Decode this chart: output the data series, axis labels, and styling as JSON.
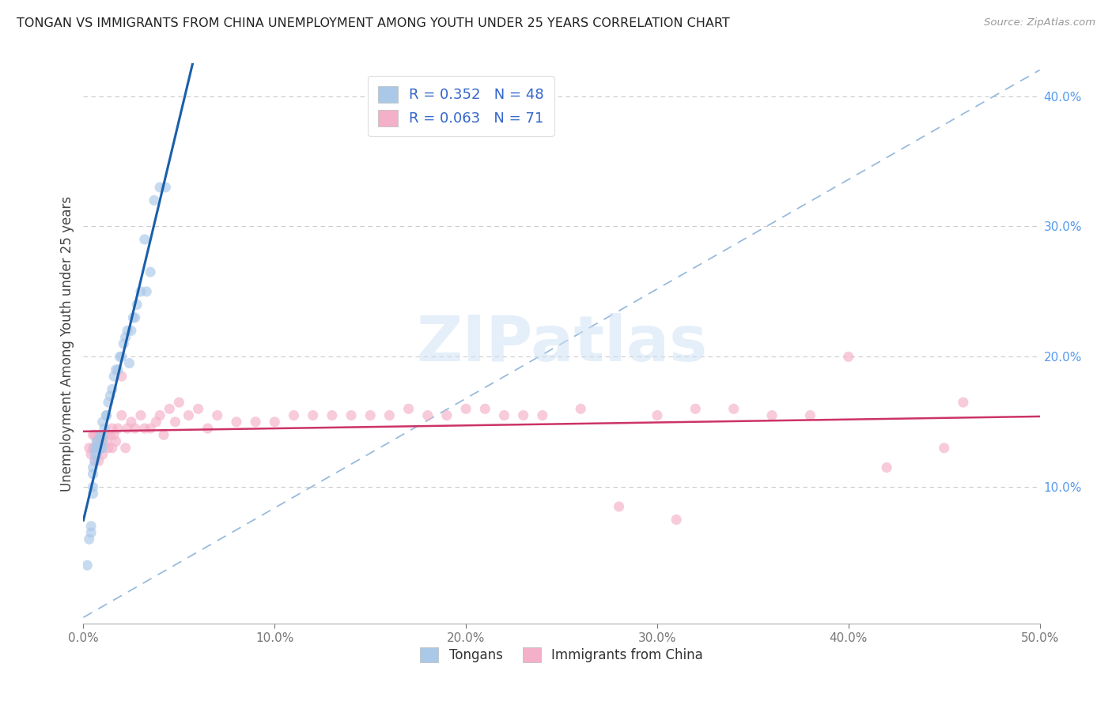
{
  "title": "TONGAN VS IMMIGRANTS FROM CHINA UNEMPLOYMENT AMONG YOUTH UNDER 25 YEARS CORRELATION CHART",
  "source": "Source: ZipAtlas.com",
  "legend_labels": [
    "Tongans",
    "Immigrants from China"
  ],
  "ylabel_label": "Unemployment Among Youth under 25 years",
  "R_tongan": 0.352,
  "N_tongan": 48,
  "R_china": 0.063,
  "N_china": 71,
  "color_tongan": "#aac8e8",
  "color_china": "#f4b0c8",
  "line_color_tongan": "#1a5faa",
  "line_color_china": "#cc3366",
  "ref_line_color": "#99bbdd",
  "scatter_alpha": 0.65,
  "scatter_size": 90,
  "xmin": 0.0,
  "xmax": 0.5,
  "ymin": -0.005,
  "ymax": 0.425,
  "tongan_x": [
    0.002,
    0.003,
    0.004,
    0.004,
    0.005,
    0.005,
    0.005,
    0.005,
    0.006,
    0.006,
    0.006,
    0.007,
    0.007,
    0.007,
    0.008,
    0.008,
    0.009,
    0.009,
    0.01,
    0.01,
    0.01,
    0.01,
    0.011,
    0.012,
    0.012,
    0.013,
    0.014,
    0.015,
    0.016,
    0.017,
    0.018,
    0.019,
    0.02,
    0.021,
    0.022,
    0.023,
    0.024,
    0.025,
    0.026,
    0.027,
    0.028,
    0.03,
    0.032,
    0.033,
    0.035,
    0.037,
    0.04,
    0.043
  ],
  "tongan_y": [
    0.04,
    0.06,
    0.065,
    0.07,
    0.095,
    0.1,
    0.11,
    0.115,
    0.12,
    0.125,
    0.13,
    0.125,
    0.13,
    0.135,
    0.13,
    0.135,
    0.13,
    0.14,
    0.13,
    0.135,
    0.14,
    0.15,
    0.145,
    0.155,
    0.155,
    0.165,
    0.17,
    0.175,
    0.185,
    0.19,
    0.19,
    0.2,
    0.2,
    0.21,
    0.215,
    0.22,
    0.195,
    0.22,
    0.23,
    0.23,
    0.24,
    0.25,
    0.29,
    0.25,
    0.265,
    0.32,
    0.33,
    0.33
  ],
  "china_x": [
    0.003,
    0.004,
    0.005,
    0.005,
    0.006,
    0.006,
    0.007,
    0.007,
    0.008,
    0.008,
    0.009,
    0.009,
    0.01,
    0.01,
    0.011,
    0.012,
    0.013,
    0.014,
    0.015,
    0.015,
    0.016,
    0.017,
    0.018,
    0.02,
    0.02,
    0.022,
    0.023,
    0.025,
    0.027,
    0.03,
    0.032,
    0.035,
    0.038,
    0.04,
    0.042,
    0.045,
    0.048,
    0.05,
    0.055,
    0.06,
    0.065,
    0.07,
    0.08,
    0.09,
    0.1,
    0.11,
    0.12,
    0.13,
    0.14,
    0.15,
    0.16,
    0.17,
    0.18,
    0.19,
    0.2,
    0.21,
    0.22,
    0.23,
    0.24,
    0.26,
    0.28,
    0.3,
    0.31,
    0.32,
    0.34,
    0.36,
    0.38,
    0.4,
    0.42,
    0.45,
    0.46
  ],
  "china_y": [
    0.13,
    0.125,
    0.13,
    0.14,
    0.12,
    0.14,
    0.13,
    0.135,
    0.12,
    0.14,
    0.13,
    0.135,
    0.125,
    0.135,
    0.14,
    0.135,
    0.13,
    0.14,
    0.13,
    0.145,
    0.14,
    0.135,
    0.145,
    0.155,
    0.185,
    0.13,
    0.145,
    0.15,
    0.145,
    0.155,
    0.145,
    0.145,
    0.15,
    0.155,
    0.14,
    0.16,
    0.15,
    0.165,
    0.155,
    0.16,
    0.145,
    0.155,
    0.15,
    0.15,
    0.15,
    0.155,
    0.155,
    0.155,
    0.155,
    0.155,
    0.155,
    0.16,
    0.155,
    0.155,
    0.16,
    0.16,
    0.155,
    0.155,
    0.155,
    0.16,
    0.085,
    0.155,
    0.075,
    0.16,
    0.16,
    0.155,
    0.155,
    0.2,
    0.115,
    0.13,
    0.165
  ],
  "ref_line_x": [
    0.0,
    0.5
  ],
  "ref_line_y": [
    0.0,
    0.42
  ]
}
